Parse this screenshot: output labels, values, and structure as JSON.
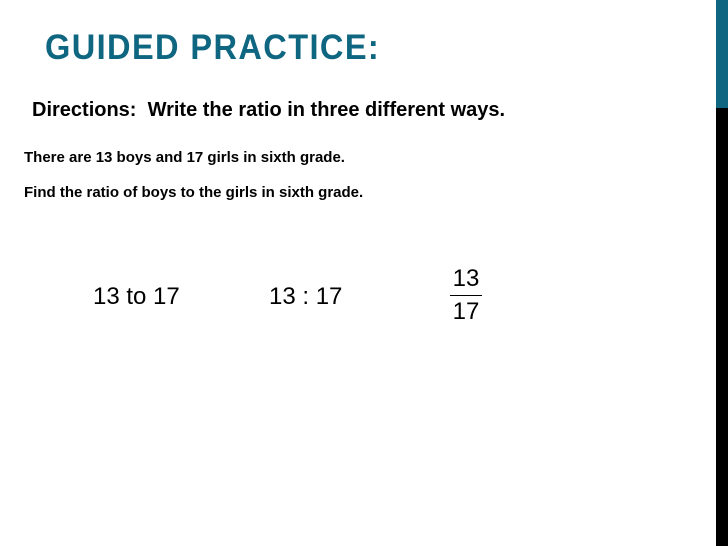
{
  "slide": {
    "title": "GUIDED PRACTICE:",
    "directions": "Directions:  Write the ratio in three different ways.",
    "problem_lines": [
      "There are 13 boys and 17 girls in sixth grade.",
      "Find the ratio of boys to the girls in sixth grade."
    ],
    "answers": {
      "words": "13 to 17",
      "colon": "13 : 17",
      "fraction": {
        "numerator": "13",
        "denominator": "17"
      }
    },
    "colors": {
      "accent": "#0f6680",
      "edge": "#000000"
    }
  }
}
